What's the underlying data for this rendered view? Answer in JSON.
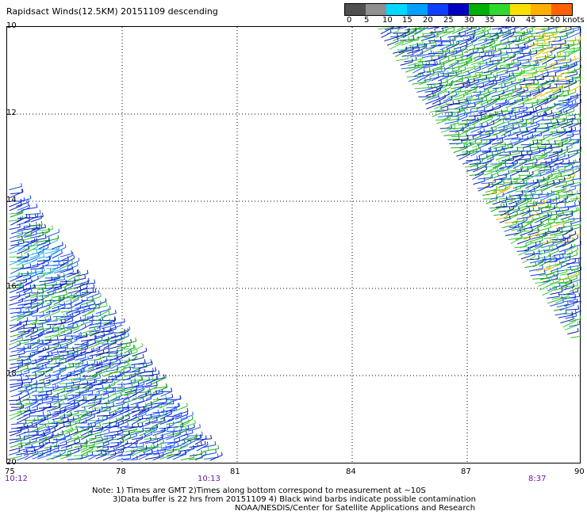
{
  "title": "Rapidsact Winds(12.5KM) 20151109 descending",
  "legend": {
    "colors": [
      "#505050",
      "#909090",
      "#00d8ff",
      "#00a0ff",
      "#1040ff",
      "#0000c0",
      "#00b000",
      "#30d830",
      "#f8e000",
      "#ffb000",
      "#ff6000",
      "#ff2000",
      "#e00000",
      "#803000",
      "#b06060",
      "#e000e0",
      "#a000c0",
      "#5000a0"
    ],
    "labels": [
      "0",
      "5",
      "10",
      "15",
      "20",
      "25",
      "30",
      "35",
      "40",
      "45",
      ">50 knots"
    ]
  },
  "y_axis": {
    "labels": [
      "10",
      "12",
      "14",
      "16",
      "18",
      "20"
    ]
  },
  "x_axis": {
    "labels": [
      "75",
      "78",
      "81",
      "84",
      "87",
      "90"
    ]
  },
  "times": [
    "10:12",
    "10:13",
    "8:37"
  ],
  "notes": [
    "Note: 1) Times are GMT 2)Times along bottom correspond to measurement at ~10S",
    "3)Data buffer is 22 hrs from 20151109 4) Black wind barbs indicate possible contamination",
    "NOAA/NESDIS/Center for Satellite Applications and Research"
  ]
}
